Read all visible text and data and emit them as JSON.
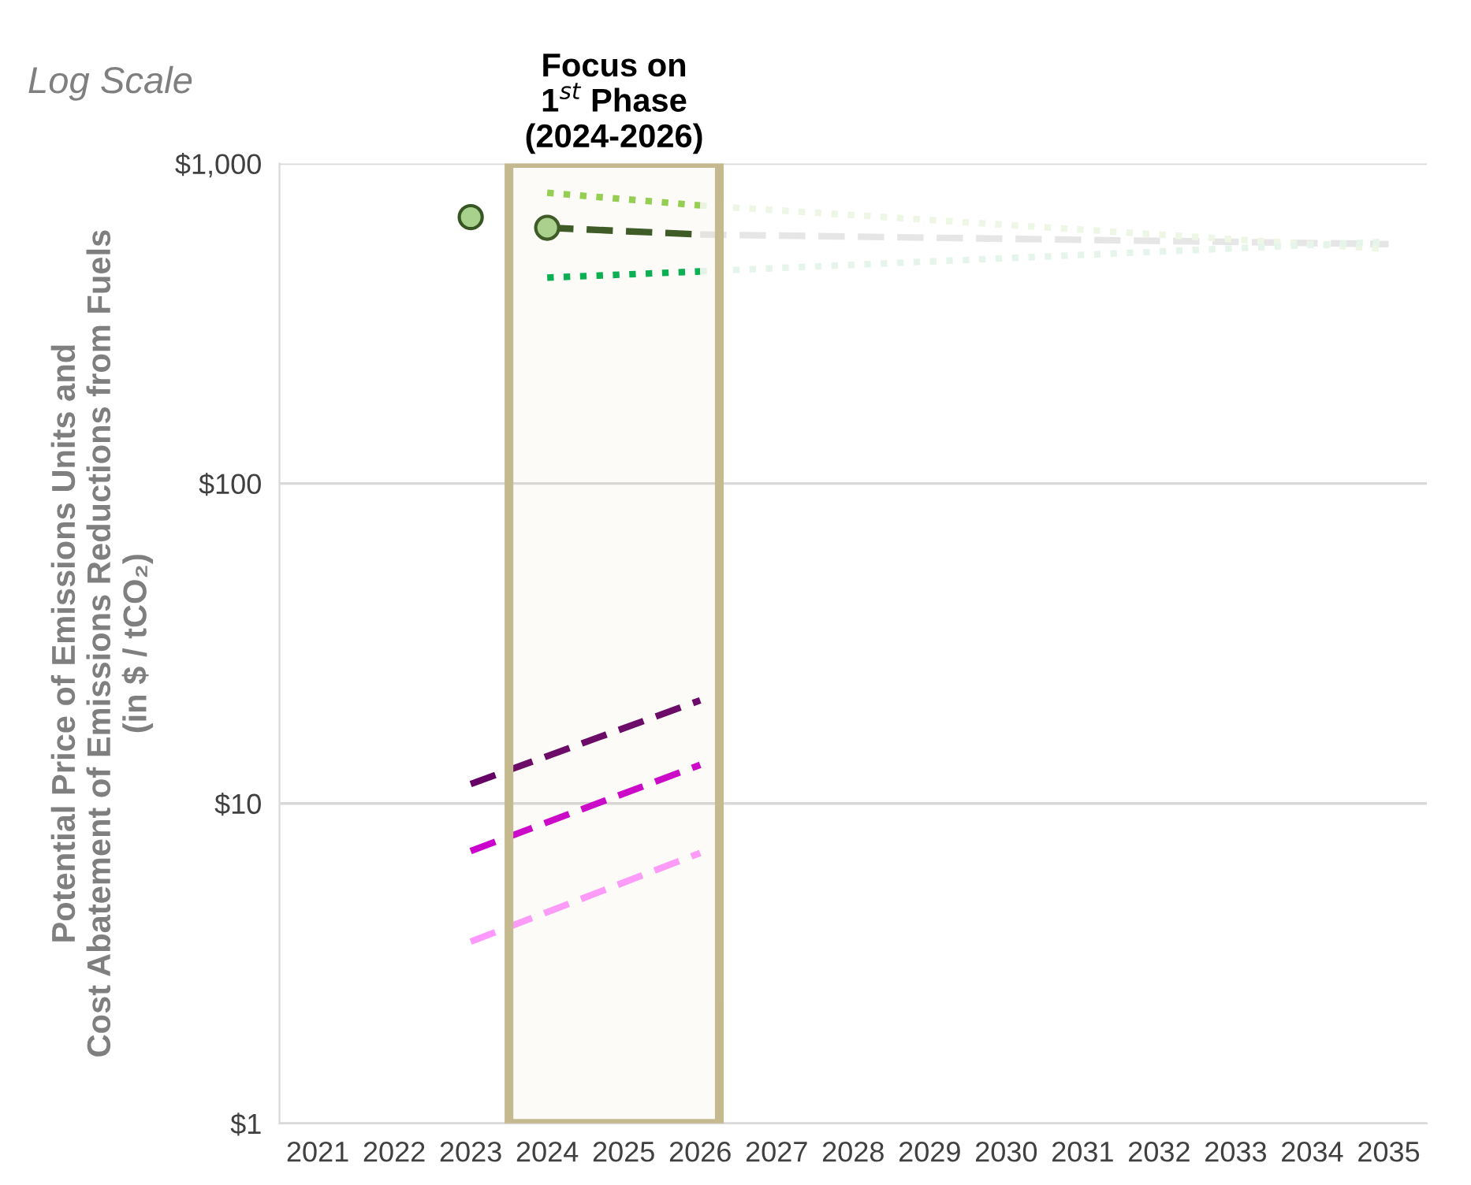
{
  "chart_data": {
    "type": "line",
    "ylabel": "Potential Price of Emissions Units and\nCost Abatement of Emissions Reductions from Fuels\n(in $ / tCO₂)",
    "annotations": [
      "Log Scale"
    ],
    "log": "y",
    "grid": "y",
    "legend": false,
    "xlim": [
      2020.5,
      2035.5
    ],
    "xticks": [
      2021,
      2022,
      2023,
      2024,
      2025,
      2026,
      2027,
      2028,
      2029,
      2030,
      2031,
      2032,
      2033,
      2034,
      2035
    ],
    "ylim": [
      1,
      1000
    ],
    "yticks": [
      {
        "value": 1,
        "label": "$1"
      },
      {
        "value": 10,
        "label": "$10"
      },
      {
        "value": 100,
        "label": "$100"
      },
      {
        "value": 1000,
        "label": "$1,000"
      }
    ],
    "bands": [
      {
        "axis": "x",
        "from": 2023.5,
        "to": 2026.25,
        "label": "Focus on\n1$^{st}$ Phase\n(2024-2026)",
        "color": "#c4b98f"
      }
    ],
    "series": [
      {
        "type": "scatter",
        "color": "#a9d18e",
        "marker": "circle",
        "x": [
          2023,
          2024
        ],
        "values": [
          680,
          630
        ]
      },
      {
        "color": "#375623",
        "line_style": "dashed",
        "x": [
          2024,
          2026
        ],
        "values": [
          630,
          600
        ]
      },
      {
        "color": "#92d050",
        "line_style": "dotted",
        "x": [
          2024,
          2026
        ],
        "values": [
          810,
          740
        ]
      },
      {
        "color": "#00b050",
        "line_style": "dotted",
        "x": [
          2024,
          2026
        ],
        "values": [
          440,
          460
        ]
      },
      {
        "color": "#e6e6e6",
        "line_style": "dashed",
        "x": [
          2026,
          2035
        ],
        "values": [
          600,
          560
        ]
      },
      {
        "color": "#eef6e6",
        "line_style": "dotted",
        "x": [
          2026,
          2035
        ],
        "values": [
          740,
          540
        ]
      },
      {
        "color": "#e6f5ec",
        "line_style": "dotted",
        "x": [
          2026,
          2035
        ],
        "values": [
          460,
          570
        ]
      },
      {
        "color": "#660066",
        "line_style": "dashed",
        "x": [
          2023,
          2026
        ],
        "values": [
          11.5,
          21
        ]
      },
      {
        "color": "#cc00cc",
        "line_style": "dashed",
        "x": [
          2023,
          2026
        ],
        "values": [
          7.1,
          13.2
        ]
      },
      {
        "color": "#ff99ff",
        "line_style": "dashed",
        "x": [
          2023,
          2026
        ],
        "values": [
          3.7,
          7.0
        ]
      }
    ]
  }
}
